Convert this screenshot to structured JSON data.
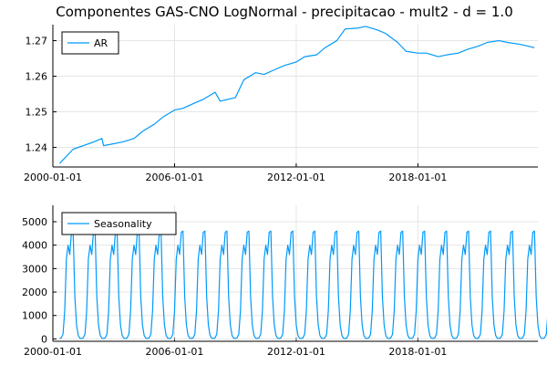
{
  "chart_data": [
    {
      "type": "line",
      "title": "Componentes GAS-CNO LogNormal - precipitacao - mult2 - d = 1.0",
      "xlabel": "",
      "ylabel": "",
      "x_range": [
        "2000-01-01",
        "2023-12-01"
      ],
      "x_ticks": [
        "2000-01-01",
        "2006-01-01",
        "2012-01-01",
        "2018-01-01"
      ],
      "ylim": [
        1.2345,
        1.2745
      ],
      "y_ticks": [
        1.24,
        1.25,
        1.26,
        1.27
      ],
      "y_tick_labels": [
        "1.24",
        "1.25",
        "1.26",
        "1.27"
      ],
      "grid": true,
      "legend_position": "top-left",
      "series": [
        {
          "name": "AR",
          "color": "#009af9",
          "x": [
            "2000-05-01",
            "2001-01-01",
            "2002-01-01",
            "2002-06-01",
            "2002-07-01",
            "2003-06-01",
            "2004-01-01",
            "2004-06-01",
            "2005-01-01",
            "2005-06-01",
            "2006-01-01",
            "2006-06-01",
            "2007-01-01",
            "2007-06-01",
            "2008-01-01",
            "2008-04-01",
            "2009-01-01",
            "2009-06-01",
            "2010-01-01",
            "2010-06-01",
            "2011-01-01",
            "2011-06-01",
            "2012-01-01",
            "2012-06-01",
            "2013-01-01",
            "2013-06-01",
            "2014-01-01",
            "2014-06-01",
            "2015-01-01",
            "2015-06-01",
            "2016-01-01",
            "2016-06-01",
            "2017-01-01",
            "2017-06-01",
            "2018-01-01",
            "2018-06-01",
            "2019-01-01",
            "2019-06-01",
            "2020-01-01",
            "2020-06-01",
            "2021-01-01",
            "2021-06-01",
            "2022-01-01",
            "2022-06-01",
            "2023-01-01",
            "2023-06-01",
            "2023-10-01"
          ],
          "values": [
            1.2355,
            1.2395,
            1.2415,
            1.2425,
            1.2405,
            1.2415,
            1.2425,
            1.2445,
            1.2465,
            1.2485,
            1.2505,
            1.251,
            1.2525,
            1.2535,
            1.2555,
            1.253,
            1.254,
            1.259,
            1.261,
            1.2605,
            1.262,
            1.263,
            1.264,
            1.2655,
            1.266,
            1.268,
            1.27,
            1.2733,
            1.2735,
            1.274,
            1.273,
            1.272,
            1.2695,
            1.267,
            1.2665,
            1.2665,
            1.2655,
            1.266,
            1.2665,
            1.2675,
            1.2685,
            1.2695,
            1.27,
            1.2695,
            1.269,
            1.2685,
            1.268
          ]
        }
      ]
    },
    {
      "type": "line",
      "title": "",
      "xlabel": "",
      "ylabel": "",
      "x_range": [
        "2000-01-01",
        "2023-12-01"
      ],
      "x_ticks": [
        "2000-01-01",
        "2006-01-01",
        "2012-01-01",
        "2018-01-01"
      ],
      "ylim": [
        -100,
        5700
      ],
      "y_ticks": [
        0,
        1000,
        2000,
        3000,
        4000,
        5000
      ],
      "y_tick_labels": [
        "0",
        "1000",
        "2000",
        "3000",
        "4000",
        "5000"
      ],
      "grid": true,
      "legend_position": "top-left",
      "series": [
        {
          "name": "Seasonality",
          "color": "#009af9",
          "start": "2000-05-01",
          "end": "2023-10-01",
          "frequency": "monthly",
          "values": [
            20,
            50,
            200,
            1200,
            3400,
            4000,
            3600,
            4550,
            4600,
            1800,
            600,
            150,
            30,
            20,
            50,
            200,
            1200,
            3400,
            4000,
            3600,
            4550,
            4600,
            1800,
            600,
            150,
            30,
            20,
            50,
            200,
            1200,
            3400,
            4000,
            3600,
            4550,
            4600,
            1800,
            600,
            150,
            30,
            20,
            50,
            200,
            1200,
            3400,
            4000,
            3600,
            4550,
            4600,
            1800,
            600,
            150,
            30,
            20,
            50,
            200,
            1200,
            3400,
            4000,
            3600,
            4550,
            4600,
            1800,
            600,
            150,
            30,
            20,
            50,
            200,
            1200,
            3400,
            4000,
            3600,
            4550,
            4600,
            1800,
            600,
            150,
            30,
            20,
            50,
            200,
            1200,
            3400,
            4000,
            3600,
            4550,
            4600,
            1800,
            600,
            150,
            30,
            20,
            50,
            200,
            1200,
            3400,
            4000,
            3600,
            4550,
            4600,
            1800,
            600,
            150,
            30,
            20,
            50,
            200,
            1200,
            3400,
            4000,
            3600,
            4550,
            4600,
            1800,
            600,
            150,
            30,
            20,
            50,
            200,
            1200,
            3400,
            4000,
            3600,
            4550,
            4600,
            1800,
            600,
            150,
            30,
            20,
            50,
            200,
            1200,
            3400,
            4000,
            3600,
            4550,
            4600,
            1800,
            600,
            150,
            30,
            20,
            50,
            200,
            1200,
            3400,
            4000,
            3600,
            4550,
            4600,
            1800,
            600,
            150,
            30,
            20,
            50,
            200,
            1200,
            3400,
            4000,
            3600,
            4550,
            4600,
            1800,
            600,
            150,
            30,
            20,
            50,
            200,
            1200,
            3400,
            4000,
            3600,
            4550,
            4600,
            1800,
            600,
            150,
            30,
            20,
            50,
            200,
            1200,
            3400,
            4000,
            3600,
            4550,
            4600,
            1800,
            600,
            150,
            30,
            20,
            50,
            200,
            1200,
            3400,
            4000,
            3600,
            4550,
            4600,
            1800,
            600,
            150,
            30,
            20,
            50,
            200,
            1200,
            3400,
            4000,
            3600,
            4550,
            4600,
            1800,
            600,
            150,
            30,
            20,
            50,
            200,
            1200,
            3400,
            4000,
            3600,
            4550,
            4600,
            1800,
            600,
            150,
            30,
            20,
            50,
            200,
            1200,
            3400,
            4000,
            3600,
            4550,
            4600,
            1800,
            600,
            150,
            30,
            20,
            50,
            200,
            1200,
            3400,
            4000,
            3600,
            4550,
            4600,
            1800,
            600,
            150,
            30,
            20,
            50,
            200,
            1200,
            3400,
            4000,
            3600,
            4550,
            4600,
            1800,
            600,
            150,
            30,
            20,
            50,
            200,
            1200,
            3400,
            4000,
            3600,
            4550,
            4600,
            1800,
            600,
            150,
            30,
            20,
            50,
            200,
            1200,
            3400,
            4000,
            3600,
            4550,
            4600,
            1800,
            600,
            150,
            30,
            20
          ]
        }
      ]
    }
  ]
}
